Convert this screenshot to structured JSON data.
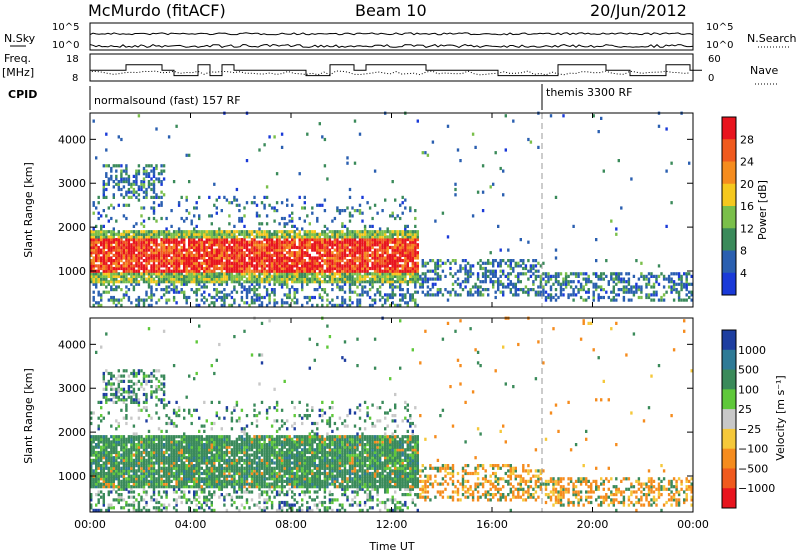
{
  "header": {
    "station": "McMurdo (fitACF)",
    "beam": "Beam 10",
    "date": "20/Jun/2012"
  },
  "status_panels": {
    "nsky_label": "N.Sky",
    "nsky_ticks": [
      "10^5",
      "10^0"
    ],
    "nsearch_label": "N.Search",
    "nsearch_ticks": [
      "10^5",
      "10^0"
    ],
    "freq_label": "Freq.",
    "freq_unit": "[MHz]",
    "freq_ticks": [
      "18",
      "8"
    ],
    "nave_label": "Nave",
    "nave_ticks": [
      "60",
      "0"
    ],
    "cpid_label": "CPID",
    "cpid_segments": [
      {
        "name": "normalsound (fast) 157 RF",
        "start_hour": 0.0,
        "end_hour": 18.0
      },
      {
        "name": "themis 3300 RF",
        "start_hour": 18.0,
        "end_hour": 24.0
      }
    ],
    "sky_level": 0.15,
    "search_level": 0.6,
    "freq_level_mhz": 12
  },
  "chart_data": [
    {
      "type": "heatmap",
      "panel": "power",
      "ylabel": "Slant Range [km]",
      "xlabel": "",
      "colorbar_label": "Power [dB]",
      "colorbar_ticks": [
        "28",
        "24",
        "20",
        "16",
        "12",
        "8",
        "4"
      ],
      "colorbar_colors": [
        "#e8141e",
        "#f05a1e",
        "#f58c1e",
        "#f5c81e",
        "#7abf4a",
        "#3a8a5a",
        "#2a5fb0",
        "#1a3ad8"
      ],
      "x_ticks": [
        "00:00",
        "04:00",
        "08:00",
        "12:00",
        "16:00",
        "20:00",
        "00:00"
      ],
      "y_ticks": [
        "1000",
        "2000",
        "3000",
        "4000"
      ],
      "xlim_hours": [
        0,
        24
      ],
      "ylim_km": [
        180,
        4600
      ],
      "scatter_bands": [
        {
          "start_hour": 0.0,
          "end_hour": 13.0,
          "range_km": [
            700,
            1900
          ],
          "value": "strong"
        },
        {
          "start_hour": 0.5,
          "end_hour": 3.0,
          "range_km": [
            2600,
            3400
          ],
          "value": "weak"
        },
        {
          "start_hour": 13.0,
          "end_hour": 18.0,
          "range_km": [
            400,
            1200
          ],
          "value": "weak"
        },
        {
          "start_hour": 18.0,
          "end_hour": 24.0,
          "range_km": [
            300,
            900
          ],
          "value": "weak"
        }
      ]
    },
    {
      "type": "heatmap",
      "panel": "velocity",
      "ylabel": "Slant Range [km]",
      "xlabel": "Time UT",
      "colorbar_label": "Velocity [m s⁻¹]",
      "colorbar_ticks": [
        "1000",
        "500",
        "100",
        "25",
        "−25",
        "−100",
        "−500",
        "−1000"
      ],
      "colorbar_colors": [
        "#1e3ea0",
        "#2e7a96",
        "#3a8a5a",
        "#5fc83a",
        "#c8c8c8",
        "#f5c83a",
        "#f58c1e",
        "#f05a1e",
        "#e8141e"
      ],
      "x_ticks": [
        "00:00",
        "04:00",
        "08:00",
        "12:00",
        "16:00",
        "20:00",
        "00:00"
      ],
      "y_ticks": [
        "1000",
        "2000",
        "3000",
        "4000"
      ],
      "xlim_hours": [
        0,
        24
      ],
      "ylim_km": [
        180,
        4600
      ]
    }
  ]
}
